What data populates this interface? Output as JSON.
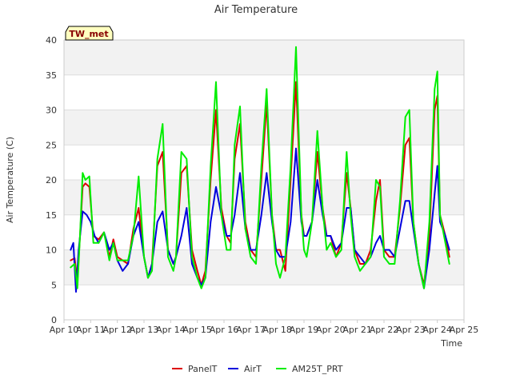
{
  "chart_data": {
    "type": "line",
    "title": "Air Temperature",
    "xlabel": "Time",
    "ylabel": "Air Temperature (C)",
    "station_badge": "TW_met",
    "ylim": [
      0,
      40
    ],
    "xlim": [
      0,
      15
    ],
    "y_ticks": [
      0,
      5,
      10,
      15,
      20,
      25,
      30,
      35,
      40
    ],
    "x_ticks": [
      {
        "x": 0,
        "label": "Apr 10"
      },
      {
        "x": 1,
        "label": "Apr 11"
      },
      {
        "x": 2,
        "label": "Apr 12"
      },
      {
        "x": 3,
        "label": "Apr 13"
      },
      {
        "x": 4,
        "label": "Apr 14"
      },
      {
        "x": 5,
        "label": "Apr 15"
      },
      {
        "x": 6,
        "label": "Apr 16"
      },
      {
        "x": 7,
        "label": "Apr 17"
      },
      {
        "x": 8,
        "label": "Apr 18"
      },
      {
        "x": 9,
        "label": "Apr 19"
      },
      {
        "x": 10,
        "label": "Apr 20"
      },
      {
        "x": 11,
        "label": "Apr 21"
      },
      {
        "x": 12,
        "label": "Apr 22"
      },
      {
        "x": 13,
        "label": "Apr 23"
      },
      {
        "x": 14,
        "label": "Apr 24"
      },
      {
        "x": 15,
        "label": "Apr 25"
      }
    ],
    "grid": true,
    "legend_position": "bottom-center",
    "series": [
      {
        "name": "PanelT",
        "color": "#dd0000",
        "x": [
          0.25,
          0.4,
          0.5,
          0.6,
          0.7,
          0.8,
          0.95,
          1.1,
          1.3,
          1.5,
          1.7,
          1.85,
          2.0,
          2.2,
          2.4,
          2.6,
          2.8,
          3.0,
          3.15,
          3.3,
          3.5,
          3.7,
          3.9,
          4.1,
          4.2,
          4.4,
          4.6,
          4.8,
          5.0,
          5.15,
          5.3,
          5.5,
          5.7,
          5.9,
          6.1,
          6.25,
          6.4,
          6.6,
          6.8,
          7.0,
          7.2,
          7.4,
          7.6,
          7.8,
          7.95,
          8.1,
          8.3,
          8.5,
          8.7,
          8.9,
          9.0,
          9.1,
          9.3,
          9.5,
          9.7,
          9.85,
          10.0,
          10.2,
          10.4,
          10.6,
          10.75,
          10.9,
          11.1,
          11.3,
          11.5,
          11.7,
          11.85,
          12.0,
          12.2,
          12.4,
          12.6,
          12.8,
          12.95,
          13.1,
          13.3,
          13.5,
          13.7,
          13.9,
          14.0,
          14.1,
          14.3,
          14.45
        ],
        "y": [
          8.5,
          8.8,
          5.5,
          12,
          19,
          19.5,
          19,
          12,
          11.5,
          12.5,
          9,
          11.5,
          9,
          8.5,
          8,
          13,
          16,
          9,
          6,
          8,
          22,
          24,
          10,
          8,
          9,
          21,
          22,
          10,
          7,
          5,
          7,
          20,
          30,
          16,
          12,
          11,
          23,
          28,
          14,
          10,
          9,
          20,
          31,
          15,
          10,
          10,
          7,
          20,
          34,
          15,
          12,
          12,
          14,
          24,
          16,
          12,
          12,
          9,
          11,
          21,
          16,
          10,
          8,
          8,
          10,
          17,
          20,
          10,
          9,
          9,
          16,
          25,
          26,
          14,
          8,
          5,
          12,
          30,
          32,
          15,
          12,
          9
        ]
      },
      {
        "name": "AirT",
        "color": "#0000dd",
        "x": [
          0.25,
          0.35,
          0.45,
          0.55,
          0.7,
          0.85,
          1.0,
          1.15,
          1.3,
          1.5,
          1.7,
          1.85,
          2.0,
          2.2,
          2.4,
          2.6,
          2.8,
          3.0,
          3.15,
          3.3,
          3.5,
          3.7,
          3.9,
          4.1,
          4.2,
          4.4,
          4.6,
          4.8,
          5.0,
          5.15,
          5.3,
          5.5,
          5.7,
          5.9,
          6.1,
          6.25,
          6.4,
          6.6,
          6.8,
          7.0,
          7.2,
          7.4,
          7.6,
          7.8,
          7.95,
          8.1,
          8.3,
          8.5,
          8.7,
          8.9,
          9.0,
          9.1,
          9.3,
          9.5,
          9.7,
          9.85,
          10.0,
          10.2,
          10.4,
          10.6,
          10.75,
          10.9,
          11.1,
          11.3,
          11.5,
          11.7,
          11.85,
          12.0,
          12.2,
          12.4,
          12.6,
          12.8,
          12.95,
          13.1,
          13.3,
          13.5,
          13.7,
          13.9,
          14.0,
          14.1,
          14.3,
          14.45
        ],
        "y": [
          10,
          11,
          4,
          10,
          15.5,
          15,
          14,
          12,
          11,
          12.5,
          10,
          11,
          8.5,
          7,
          8,
          12,
          14,
          9,
          6,
          8,
          14,
          15.5,
          10,
          8,
          9,
          12,
          16,
          8,
          6,
          5,
          6,
          14,
          19,
          15,
          12,
          12,
          15,
          21,
          13,
          10,
          10,
          15,
          21,
          14,
          10,
          9,
          9,
          14,
          24.5,
          14,
          12,
          12,
          14,
          20,
          15,
          12,
          12,
          10,
          11,
          16,
          16,
          10,
          9,
          8,
          9,
          11,
          12,
          10,
          10,
          9,
          13,
          17,
          17,
          13,
          8,
          4.5,
          10,
          18,
          22,
          14,
          12,
          10
        ]
      },
      {
        "name": "AM25T_PRT",
        "color": "#00ee00",
        "x": [
          0.25,
          0.4,
          0.5,
          0.6,
          0.7,
          0.8,
          0.95,
          1.1,
          1.3,
          1.5,
          1.7,
          1.85,
          2.0,
          2.2,
          2.4,
          2.6,
          2.8,
          3.0,
          3.15,
          3.3,
          3.5,
          3.7,
          3.9,
          4.1,
          4.2,
          4.4,
          4.6,
          4.8,
          5.0,
          5.15,
          5.3,
          5.5,
          5.7,
          5.9,
          6.1,
          6.25,
          6.4,
          6.6,
          6.8,
          7.0,
          7.2,
          7.4,
          7.6,
          7.8,
          7.95,
          8.1,
          8.3,
          8.5,
          8.7,
          8.9,
          9.0,
          9.1,
          9.3,
          9.5,
          9.7,
          9.85,
          10.0,
          10.2,
          10.4,
          10.6,
          10.75,
          10.9,
          11.1,
          11.3,
          11.5,
          11.7,
          11.85,
          12.0,
          12.2,
          12.4,
          12.6,
          12.8,
          12.95,
          13.1,
          13.3,
          13.5,
          13.7,
          13.9,
          14.0,
          14.1,
          14.3,
          14.45
        ],
        "y": [
          7.5,
          8,
          4.5,
          12,
          21,
          20,
          20.5,
          11,
          11,
          12.5,
          8.5,
          11,
          8.5,
          8.5,
          8.5,
          12,
          20.5,
          9,
          6,
          7,
          23,
          28,
          9,
          7,
          9,
          24,
          23,
          9,
          6,
          4.5,
          6,
          22,
          34,
          15,
          10,
          10,
          25,
          30.5,
          13,
          9,
          8,
          22,
          33,
          15,
          8,
          6,
          9,
          22,
          39,
          15,
          10,
          9,
          14,
          27,
          16,
          10,
          11,
          9,
          10,
          24,
          15,
          9,
          7,
          8,
          9,
          20,
          19,
          9,
          8,
          8,
          17,
          29,
          30,
          14,
          8,
          4.5,
          14,
          33,
          35.5,
          15,
          11,
          8
        ]
      }
    ]
  }
}
